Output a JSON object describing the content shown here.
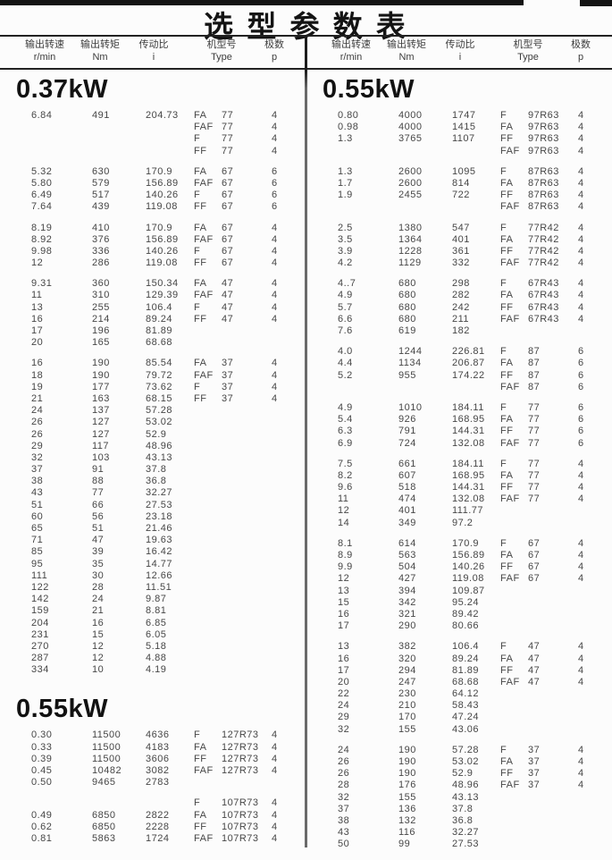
{
  "page": {
    "title": "选 型 参 数 表",
    "column_headers": [
      {
        "cn": "输出转速",
        "en": "r/min"
      },
      {
        "cn": "输出转矩",
        "en": "Nm"
      },
      {
        "cn": "传动比",
        "en": "i"
      },
      {
        "cn": "机型号",
        "en": "Type"
      },
      {
        "cn": "极数",
        "en": "p"
      }
    ],
    "colors": {
      "paper": "#fcfcfc",
      "ink": "#464646",
      "heading_ink": "#121212",
      "rule": "#222222",
      "divider": "#6a6a6a"
    }
  },
  "columns": [
    {
      "sections": [
        {
          "power": "0.37kW",
          "blocks": [
            [
              [
                "6.84",
                "491",
                "204.73",
                "FA",
                "77",
                "4"
              ],
              [
                "",
                "",
                "",
                "FAF",
                "77",
                "4"
              ],
              [
                "",
                "",
                "",
                "F",
                "77",
                "4"
              ],
              [
                "",
                "",
                "",
                "FF",
                "77",
                "4"
              ]
            ],
            [
              [
                "5.32",
                "630",
                "170.9",
                "FA",
                "67",
                "6"
              ],
              [
                "5.80",
                "579",
                "156.89",
                "FAF",
                "67",
                "6"
              ],
              [
                "6.49",
                "517",
                "140.26",
                "F",
                "67",
                "6"
              ],
              [
                "7.64",
                "439",
                "119.08",
                "FF",
                "67",
                "6"
              ]
            ],
            [
              [
                "8.19",
                "410",
                "170.9",
                "FA",
                "67",
                "4"
              ],
              [
                "8.92",
                "376",
                "156.89",
                "FAF",
                "67",
                "4"
              ],
              [
                "9.98",
                "336",
                "140.26",
                "F",
                "67",
                "4"
              ],
              [
                "12",
                "286",
                "119.08",
                "FF",
                "67",
                "4"
              ]
            ],
            [
              [
                "9.31",
                "360",
                "150.34",
                "FA",
                "47",
                "4"
              ],
              [
                "11",
                "310",
                "129.39",
                "FAF",
                "47",
                "4"
              ],
              [
                "13",
                "255",
                "106.4",
                "F",
                "47",
                "4"
              ],
              [
                "16",
                "214",
                "89.24",
                "FF",
                "47",
                "4"
              ],
              [
                "17",
                "196",
                "81.89",
                "",
                "",
                ""
              ],
              [
                "20",
                "165",
                "68.68",
                "",
                "",
                ""
              ]
            ],
            [
              [
                "16",
                "190",
                "85.54",
                "FA",
                "37",
                "4"
              ],
              [
                "18",
                "190",
                "79.72",
                "FAF",
                "37",
                "4"
              ],
              [
                "19",
                "177",
                "73.62",
                "F",
                "37",
                "4"
              ],
              [
                "21",
                "163",
                "68.15",
                "FF",
                "37",
                "4"
              ],
              [
                "24",
                "137",
                "57.28",
                "",
                "",
                ""
              ],
              [
                "26",
                "127",
                "53.02",
                "",
                "",
                ""
              ],
              [
                "26",
                "127",
                "52.9",
                "",
                "",
                ""
              ],
              [
                "29",
                "117",
                "48.96",
                "",
                "",
                ""
              ],
              [
                "32",
                "103",
                "43.13",
                "",
                "",
                ""
              ],
              [
                "37",
                "91",
                "37.8",
                "",
                "",
                ""
              ],
              [
                "38",
                "88",
                "36.8",
                "",
                "",
                ""
              ],
              [
                "43",
                "77",
                "32.27",
                "",
                "",
                ""
              ],
              [
                "51",
                "66",
                "27.53",
                "",
                "",
                ""
              ],
              [
                "60",
                "56",
                "23.18",
                "",
                "",
                ""
              ],
              [
                "65",
                "51",
                "21.46",
                "",
                "",
                ""
              ],
              [
                "71",
                "47",
                "19.63",
                "",
                "",
                ""
              ],
              [
                "85",
                "39",
                "16.42",
                "",
                "",
                ""
              ],
              [
                "95",
                "35",
                "14.77",
                "",
                "",
                ""
              ],
              [
                "111",
                "30",
                "12.66",
                "",
                "",
                ""
              ],
              [
                "122",
                "28",
                "11.51",
                "",
                "",
                ""
              ],
              [
                "142",
                "24",
                "9.87",
                "",
                "",
                ""
              ],
              [
                "159",
                "21",
                "8.81",
                "",
                "",
                ""
              ],
              [
                "204",
                "16",
                "6.85",
                "",
                "",
                ""
              ],
              [
                "231",
                "15",
                "6.05",
                "",
                "",
                ""
              ],
              [
                "270",
                "12",
                "5.18",
                "",
                "",
                ""
              ],
              [
                "287",
                "12",
                "4.88",
                "",
                "",
                ""
              ],
              [
                "334",
                "10",
                "4.19",
                "",
                "",
                ""
              ]
            ]
          ]
        },
        {
          "power": "0.55kW",
          "blocks": [
            [
              [
                "0.30",
                "11500",
                "4636",
                "F",
                "127R73",
                "4"
              ],
              [
                "0.33",
                "11500",
                "4183",
                "FA",
                "127R73",
                "4"
              ],
              [
                "0.39",
                "11500",
                "3606",
                "FF",
                "127R73",
                "4"
              ],
              [
                "0.45",
                "10482",
                "3082",
                "FAF",
                "127R73",
                "4"
              ],
              [
                "0.50",
                "9465",
                "2783",
                "",
                "",
                ""
              ]
            ],
            [
              [
                "",
                "",
                "",
                "F",
                "107R73",
                "4"
              ],
              [
                "0.49",
                "6850",
                "2822",
                "FA",
                "107R73",
                "4"
              ],
              [
                "0.62",
                "6850",
                "2228",
                "FF",
                "107R73",
                "4"
              ],
              [
                "0.81",
                "5863",
                "1724",
                "FAF",
                "107R73",
                "4"
              ]
            ]
          ]
        }
      ]
    },
    {
      "sections": [
        {
          "power": "0.55kW",
          "blocks": [
            [
              [
                "0.80",
                "4000",
                "1747",
                "F",
                "97R63",
                "4"
              ],
              [
                "0.98",
                "4000",
                "1415",
                "FA",
                "97R63",
                "4"
              ],
              [
                "1.3",
                "3765",
                "1107",
                "FF",
                "97R63",
                "4"
              ],
              [
                "",
                "",
                "",
                "FAF",
                "97R63",
                "4"
              ]
            ],
            [
              [
                "1.3",
                "2600",
                "1095",
                "F",
                "87R63",
                "4"
              ],
              [
                "1.7",
                "2600",
                "814",
                "FA",
                "87R63",
                "4"
              ],
              [
                "1.9",
                "2455",
                "722",
                "FF",
                "87R63",
                "4"
              ],
              [
                "",
                "",
                "",
                "FAF",
                "87R63",
                "4"
              ]
            ],
            [
              [
                "2.5",
                "1380",
                "547",
                "F",
                "77R42",
                "4"
              ],
              [
                "3.5",
                "1364",
                "401",
                "FA",
                "77R42",
                "4"
              ],
              [
                "3.9",
                "1228",
                "361",
                "FF",
                "77R42",
                "4"
              ],
              [
                "4.2",
                "1129",
                "332",
                "FAF",
                "77R42",
                "4"
              ]
            ],
            [
              [
                "4..7",
                "680",
                "298",
                "F",
                "67R43",
                "4"
              ],
              [
                "4.9",
                "680",
                "282",
                "FA",
                "67R43",
                "4"
              ],
              [
                "5.7",
                "680",
                "242",
                "FF",
                "67R43",
                "4"
              ],
              [
                "6.6",
                "680",
                "211",
                "FAF",
                "67R43",
                "4"
              ],
              [
                "7.6",
                "619",
                "182",
                "",
                "",
                ""
              ]
            ],
            [
              [
                "4.0",
                "1244",
                "226.81",
                "F",
                "87",
                "6"
              ],
              [
                "4.4",
                "1134",
                "206.87",
                "FA",
                "87",
                "6"
              ],
              [
                "5.2",
                "955",
                "174.22",
                "FF",
                "87",
                "6"
              ],
              [
                "",
                "",
                "",
                "FAF",
                "87",
                "6"
              ]
            ],
            [
              [
                "4.9",
                "1010",
                "184.11",
                "F",
                "77",
                "6"
              ],
              [
                "5.4",
                "926",
                "168.95",
                "FA",
                "77",
                "6"
              ],
              [
                "6.3",
                "791",
                "144.31",
                "FF",
                "77",
                "6"
              ],
              [
                "6.9",
                "724",
                "132.08",
                "FAF",
                "77",
                "6"
              ]
            ],
            [
              [
                "7.5",
                "661",
                "184.11",
                "F",
                "77",
                "4"
              ],
              [
                "8.2",
                "607",
                "168.95",
                "FA",
                "77",
                "4"
              ],
              [
                "9.6",
                "518",
                "144.31",
                "FF",
                "77",
                "4"
              ],
              [
                "11",
                "474",
                "132.08",
                "FAF",
                "77",
                "4"
              ],
              [
                "12",
                "401",
                "111.77",
                "",
                "",
                ""
              ],
              [
                "14",
                "349",
                "97.2",
                "",
                "",
                ""
              ]
            ],
            [
              [
                "8.1",
                "614",
                "170.9",
                "F",
                "67",
                "4"
              ],
              [
                "8.9",
                "563",
                "156.89",
                "FA",
                "67",
                "4"
              ],
              [
                "9.9",
                "504",
                "140.26",
                "FF",
                "67",
                "4"
              ],
              [
                "12",
                "427",
                "119.08",
                "FAF",
                "67",
                "4"
              ],
              [
                "13",
                "394",
                "109.87",
                "",
                "",
                ""
              ],
              [
                "15",
                "342",
                "95.24",
                "",
                "",
                ""
              ],
              [
                "16",
                "321",
                "89.42",
                "",
                "",
                ""
              ],
              [
                "17",
                "290",
                "80.66",
                "",
                "",
                ""
              ]
            ],
            [
              [
                "13",
                "382",
                "106.4",
                "F",
                "47",
                "4"
              ],
              [
                "16",
                "320",
                "89.24",
                "FA",
                "47",
                "4"
              ],
              [
                "17",
                "294",
                "81.89",
                "FF",
                "47",
                "4"
              ],
              [
                "20",
                "247",
                "68.68",
                "FAF",
                "47",
                "4"
              ],
              [
                "22",
                "230",
                "64.12",
                "",
                "",
                ""
              ],
              [
                "24",
                "210",
                "58.43",
                "",
                "",
                ""
              ],
              [
                "29",
                "170",
                "47.24",
                "",
                "",
                ""
              ],
              [
                "32",
                "155",
                "43.06",
                "",
                "",
                ""
              ]
            ],
            [
              [
                "24",
                "190",
                "57.28",
                "F",
                "37",
                "4"
              ],
              [
                "26",
                "190",
                "53.02",
                "FA",
                "37",
                "4"
              ],
              [
                "26",
                "190",
                "52.9",
                "FF",
                "37",
                "4"
              ],
              [
                "28",
                "176",
                "48.96",
                "FAF",
                "37",
                "4"
              ],
              [
                "32",
                "155",
                "43.13",
                "",
                "",
                ""
              ],
              [
                "37",
                "136",
                "37.8",
                "",
                "",
                ""
              ],
              [
                "38",
                "132",
                "36.8",
                "",
                "",
                ""
              ],
              [
                "43",
                "116",
                "32.27",
                "",
                "",
                ""
              ],
              [
                "50",
                "99",
                "27.53",
                "",
                "",
                ""
              ]
            ]
          ]
        }
      ]
    }
  ]
}
